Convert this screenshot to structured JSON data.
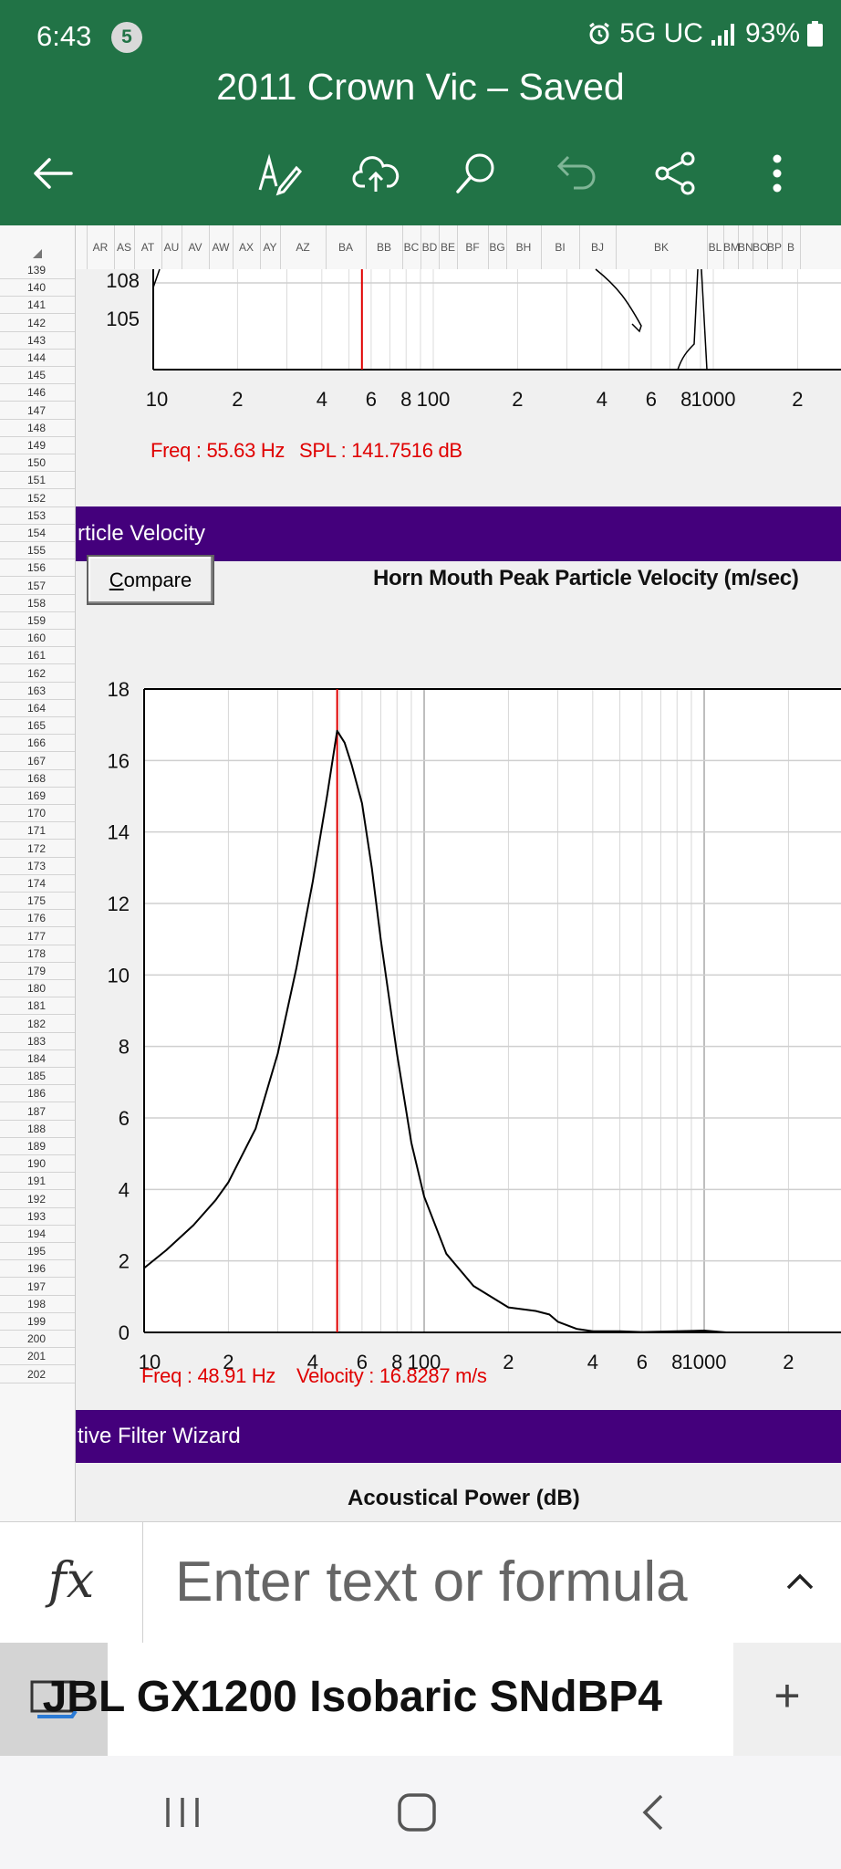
{
  "status_bar": {
    "time": "6:43",
    "notification_count": "5",
    "network": "5G UC",
    "battery": "93%"
  },
  "app": {
    "title": "2011 Crown Vic – Saved"
  },
  "toolbar": {
    "icons": [
      "back-arrow-icon",
      "draw-pen-icon",
      "cloud-upload-icon",
      "search-icon",
      "undo-icon",
      "share-icon",
      "more-vertical-icon"
    ],
    "undo_disabled": true
  },
  "columns": [
    "AR",
    "AS",
    "AT",
    "AU",
    "AV",
    "AW",
    "AX",
    "AY",
    "AZ",
    "BA",
    "BB",
    "BC",
    "BD",
    "BE",
    "BF",
    "BG",
    "BH",
    "BI",
    "BJ",
    "BK",
    "BL",
    "BM",
    "BN",
    "BO",
    "BP",
    "B"
  ],
  "rows": [
    "139",
    "140",
    "141",
    "142",
    "143",
    "144",
    "145",
    "146",
    "147",
    "148",
    "149",
    "150",
    "151",
    "152",
    "153",
    "154",
    "155",
    "156",
    "157",
    "158",
    "159",
    "160",
    "161",
    "162",
    "163",
    "164",
    "165",
    "166",
    "167",
    "168",
    "169",
    "170",
    "171",
    "172",
    "173",
    "174",
    "175",
    "176",
    "177",
    "178",
    "179",
    "180",
    "181",
    "182",
    "183",
    "184",
    "185",
    "186",
    "187",
    "188",
    "189",
    "190",
    "191",
    "192",
    "193",
    "194",
    "195",
    "196",
    "197",
    "198",
    "199",
    "200",
    "201",
    "202"
  ],
  "spl_chart": {
    "y_ticks": [
      "108",
      "105"
    ],
    "x_ticks": [
      "10",
      "2",
      "4",
      "6",
      "8",
      "100",
      "2",
      "4",
      "6",
      "8",
      "1000",
      "2"
    ],
    "readout_freq": "Freq : 55.63 Hz",
    "readout_value": "SPL : 141.7516 dB"
  },
  "velocity_section": {
    "header": "rticle Velocity",
    "compare_button": "Compare",
    "chart_title": "Horn Mouth Peak Particle Velocity (m/sec)",
    "readout_freq": "Freq : 48.91 Hz",
    "readout_value": "Velocity : 16.8287 m/s"
  },
  "filter_section": {
    "header": "tive Filter Wizard",
    "chart_title": "Acoustical Power (dB)"
  },
  "chart_data": {
    "type": "line",
    "title": "Horn Mouth Peak Particle Velocity (m/sec)",
    "x_scale": "log",
    "xlim": [
      10,
      3000
    ],
    "ylim": [
      0,
      18
    ],
    "y_ticks": [
      0,
      2,
      4,
      6,
      8,
      10,
      12,
      14,
      16,
      18
    ],
    "x_tick_labels": [
      "10",
      "2",
      "4",
      "6",
      "8",
      "100",
      "2",
      "4",
      "6",
      "8",
      "1000",
      "2"
    ],
    "grid": true,
    "marker_x": 48.91,
    "series": [
      {
        "x": [
          10,
          12,
          15,
          18,
          20,
          25,
          30,
          35,
          40,
          45,
          48.91,
          52,
          55,
          60,
          65,
          70,
          80,
          90,
          100,
          120,
          150,
          200,
          250,
          280,
          300,
          350,
          400,
          500,
          600,
          1000,
          1200
        ],
        "y": [
          1.8,
          2.3,
          3.0,
          3.7,
          4.2,
          5.7,
          7.8,
          10.2,
          12.6,
          15.0,
          16.83,
          16.5,
          15.9,
          14.8,
          13.0,
          11.0,
          7.8,
          5.3,
          3.8,
          2.2,
          1.3,
          0.7,
          0.6,
          0.5,
          0.3,
          0.1,
          0.03,
          0.03,
          0.01,
          0.05,
          0.0
        ]
      }
    ]
  },
  "formula_bar": {
    "fx_label": "fx",
    "placeholder": "Enter text or formula"
  },
  "sheet_tabs": {
    "active_sheet": "JBL GX1200 Isobaric SNdBP4",
    "add_label": "+"
  },
  "colors": {
    "app_green": "#217346",
    "section_purple": "#44007c",
    "marker_red": "#e00000"
  }
}
